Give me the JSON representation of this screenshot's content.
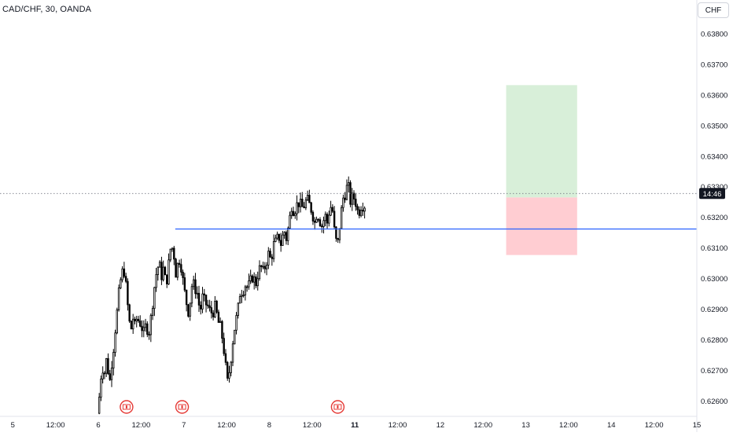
{
  "header": {
    "symbol_title": "CAD/CHF, 30, OANDA"
  },
  "currency_button": {
    "label": "CHF"
  },
  "colors": {
    "up_body": "#ffffff",
    "down_body": "#000000",
    "wick": "#000000",
    "level_line": "#2962ff",
    "target_zone": "#d8efd9",
    "stop_zone": "#ffcdd2",
    "last_price_tag": "#131722",
    "last_price_text": "#ffffff",
    "event_marker": "#e53935"
  },
  "chart_data": {
    "type": "candlestick",
    "title": "CAD/CHF, 30, OANDA",
    "xlabel": "",
    "ylabel": "",
    "ylim": [
      0.6255,
      0.6391
    ],
    "y_ticks": [
      "0.63800",
      "0.63700",
      "0.63600",
      "0.63500",
      "0.63400",
      "0.63300",
      "0.63200",
      "0.63100",
      "0.63000",
      "0.62900",
      "0.62800",
      "0.62700",
      "0.62600"
    ],
    "x_ticks": [
      {
        "label": "5",
        "t": 1.0,
        "bold": false
      },
      {
        "label": "12:00",
        "t": 1.5,
        "bold": false
      },
      {
        "label": "6",
        "t": 2.0,
        "bold": false
      },
      {
        "label": "12:00",
        "t": 2.5,
        "bold": false
      },
      {
        "label": "7",
        "t": 3.0,
        "bold": false
      },
      {
        "label": "12:00",
        "t": 3.5,
        "bold": false
      },
      {
        "label": "8",
        "t": 4.0,
        "bold": false
      },
      {
        "label": "12:00",
        "t": 4.5,
        "bold": false
      },
      {
        "label": "11",
        "t": 5.0,
        "bold": true
      },
      {
        "label": "12:00",
        "t": 5.5,
        "bold": false
      },
      {
        "label": "12",
        "t": 6.0,
        "bold": false
      },
      {
        "label": "12:00",
        "t": 6.5,
        "bold": false
      },
      {
        "label": "13",
        "t": 7.0,
        "bold": false
      },
      {
        "label": "12:00",
        "t": 7.5,
        "bold": false
      },
      {
        "label": "14",
        "t": 8.0,
        "bold": false
      },
      {
        "label": "12:00",
        "t": 8.5,
        "bold": false
      },
      {
        "label": "15",
        "t": 9.0,
        "bold": false
      }
    ],
    "t_range": [
      0.85,
      9.0
    ],
    "last_price": 0.63278,
    "last_price_label": "14:46",
    "horizontal_level": {
      "price": 0.63162,
      "t_start": 2.9,
      "t_end": 9.0
    },
    "position": {
      "t_start": 6.77,
      "t_end": 7.6,
      "entry": 0.63265,
      "target": 0.63632,
      "stop": 0.63077
    },
    "events": [
      2.33,
      2.98,
      4.8
    ],
    "price_path": [
      [
        2.0,
        0.6256
      ],
      [
        2.02,
        0.6261
      ],
      [
        2.04,
        0.6268
      ],
      [
        2.06,
        0.6271
      ],
      [
        2.09,
        0.6269
      ],
      [
        2.11,
        0.6275
      ],
      [
        2.14,
        0.6265
      ],
      [
        2.16,
        0.6271
      ],
      [
        2.19,
        0.6278
      ],
      [
        2.21,
        0.6284
      ],
      [
        2.24,
        0.6292
      ],
      [
        2.26,
        0.6298
      ],
      [
        2.29,
        0.6302
      ],
      [
        2.31,
        0.6303
      ],
      [
        2.34,
        0.6296
      ],
      [
        2.36,
        0.6289
      ],
      [
        2.39,
        0.6282
      ],
      [
        2.41,
        0.6288
      ],
      [
        2.44,
        0.6284
      ],
      [
        2.46,
        0.6287
      ],
      [
        2.49,
        0.6286
      ],
      [
        2.51,
        0.6285
      ],
      [
        2.54,
        0.6282
      ],
      [
        2.57,
        0.6285
      ],
      [
        2.6,
        0.6282
      ],
      [
        2.63,
        0.6288
      ],
      [
        2.66,
        0.6296
      ],
      [
        2.69,
        0.6302
      ],
      [
        2.72,
        0.6305
      ],
      [
        2.75,
        0.6301
      ],
      [
        2.78,
        0.6304
      ],
      [
        2.8,
        0.6297
      ],
      [
        2.83,
        0.6304
      ],
      [
        2.86,
        0.6311
      ],
      [
        2.89,
        0.6309
      ],
      [
        2.92,
        0.6301
      ],
      [
        2.95,
        0.6307
      ],
      [
        2.98,
        0.6304
      ],
      [
        3.01,
        0.6297
      ],
      [
        3.03,
        0.6294
      ],
      [
        3.06,
        0.6289
      ],
      [
        3.08,
        0.6292
      ],
      [
        3.11,
        0.6299
      ],
      [
        3.14,
        0.6297
      ],
      [
        3.17,
        0.6295
      ],
      [
        3.2,
        0.6289
      ],
      [
        3.23,
        0.6294
      ],
      [
        3.26,
        0.6292
      ],
      [
        3.29,
        0.6291
      ],
      [
        3.32,
        0.6289
      ],
      [
        3.35,
        0.6289
      ],
      [
        3.38,
        0.6291
      ],
      [
        3.41,
        0.6286
      ],
      [
        3.44,
        0.6284
      ],
      [
        3.47,
        0.6279
      ],
      [
        3.5,
        0.6271
      ],
      [
        3.52,
        0.6266
      ],
      [
        3.55,
        0.6271
      ],
      [
        3.58,
        0.6279
      ],
      [
        3.61,
        0.6285
      ],
      [
        3.64,
        0.6289
      ],
      [
        3.67,
        0.6296
      ],
      [
        3.7,
        0.6296
      ],
      [
        3.73,
        0.6298
      ],
      [
        3.76,
        0.6297
      ],
      [
        3.79,
        0.6299
      ],
      [
        3.82,
        0.6301
      ],
      [
        3.85,
        0.6298
      ],
      [
        3.88,
        0.6302
      ],
      [
        3.91,
        0.6304
      ],
      [
        3.94,
        0.6302
      ],
      [
        3.97,
        0.6305
      ],
      [
        4.0,
        0.6308
      ],
      [
        4.03,
        0.6306
      ],
      [
        4.06,
        0.6311
      ],
      [
        4.09,
        0.6312
      ],
      [
        4.12,
        0.6314
      ],
      [
        4.15,
        0.6311
      ],
      [
        4.18,
        0.6316
      ],
      [
        4.21,
        0.6313
      ],
      [
        4.24,
        0.6318
      ],
      [
        4.27,
        0.6324
      ],
      [
        4.3,
        0.6322
      ],
      [
        4.33,
        0.6324
      ],
      [
        4.36,
        0.6325
      ],
      [
        4.39,
        0.6323
      ],
      [
        4.42,
        0.6324
      ],
      [
        4.45,
        0.6326
      ],
      [
        4.48,
        0.6324
      ],
      [
        4.51,
        0.6322
      ],
      [
        4.54,
        0.6318
      ],
      [
        4.57,
        0.6322
      ],
      [
        4.6,
        0.6319
      ],
      [
        4.63,
        0.6317
      ],
      [
        4.66,
        0.6321
      ],
      [
        4.69,
        0.6318
      ],
      [
        4.72,
        0.6324
      ],
      [
        4.75,
        0.6322
      ],
      [
        4.78,
        0.6313
      ],
      [
        4.81,
        0.6311
      ],
      [
        4.84,
        0.6319
      ],
      [
        4.87,
        0.6326
      ],
      [
        4.9,
        0.6328
      ],
      [
        4.93,
        0.6331
      ],
      [
        4.96,
        0.6325
      ],
      [
        4.99,
        0.6327
      ],
      [
        5.02,
        0.6325
      ],
      [
        5.05,
        0.6321
      ],
      [
        5.08,
        0.6324
      ],
      [
        5.11,
        0.6324
      ]
    ]
  }
}
